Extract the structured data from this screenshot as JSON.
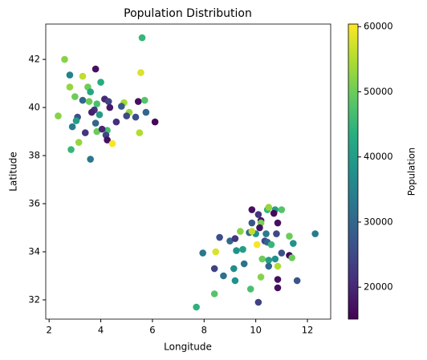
{
  "chart_data": {
    "type": "scatter",
    "title": "Population Distribution",
    "x_label": "Longitude",
    "y_label": "Latitude",
    "colorbar_label": "Population",
    "colormap": "viridis",
    "xlim": [
      1.87,
      12.9
    ],
    "ylim": [
      31.2,
      43.47
    ],
    "xticks": [
      2,
      4,
      6,
      8,
      10,
      12
    ],
    "yticks": [
      32,
      34,
      36,
      38,
      40,
      42
    ],
    "clim": [
      15100,
      60400
    ],
    "cticks": [
      20000,
      30000,
      40000,
      50000,
      60000
    ],
    "x": [
      5.6,
      2.6,
      3.8,
      2.8,
      3.3,
      5.55,
      4.0,
      2.8,
      3.5,
      3.6,
      3.0,
      3.3,
      3.55,
      3.85,
      4.15,
      4.3,
      4.35,
      4.9,
      4.8,
      5.45,
      5.7,
      3.75,
      3.95,
      3.65,
      2.35,
      3.1,
      3.05,
      3.8,
      5.1,
      5.0,
      5.35,
      5.75,
      4.6,
      6.1,
      2.9,
      3.4,
      3.85,
      4.25,
      4.05,
      4.2,
      4.25,
      5.5,
      4.45,
      3.15,
      2.85,
      3.6,
      9.85,
      10.1,
      10.45,
      10.5,
      10.75,
      11.0,
      10.7,
      10.2,
      9.85,
      10.2,
      10.15,
      10.85,
      9.75,
      10.0,
      10.05,
      9.85,
      9.4,
      10.4,
      10.8,
      11.3,
      12.3,
      9.0,
      9.2,
      10.35,
      10.45,
      10.6,
      8.6,
      11.45,
      9.25,
      9.5,
      8.45,
      7.95,
      11.0,
      11.3,
      11.4,
      10.25,
      10.5,
      10.75,
      10.85,
      10.5,
      9.55,
      9.15,
      8.4,
      8.75,
      10.2,
      9.2,
      10.85,
      11.6,
      10.85,
      9.8,
      8.4,
      10.1,
      7.7
    ],
    "y": [
      42.9,
      42.0,
      41.6,
      41.35,
      41.3,
      41.45,
      41.05,
      40.85,
      40.85,
      40.65,
      40.45,
      40.3,
      40.25,
      40.15,
      40.35,
      40.25,
      40.0,
      40.2,
      40.05,
      40.25,
      40.3,
      39.9,
      39.7,
      39.8,
      39.65,
      39.6,
      39.45,
      39.35,
      39.8,
      39.65,
      39.6,
      39.8,
      39.4,
      39.4,
      39.2,
      38.95,
      39.0,
      39.05,
      39.1,
      38.85,
      38.65,
      38.95,
      38.5,
      38.55,
      38.25,
      37.85,
      35.75,
      35.55,
      35.75,
      35.85,
      35.75,
      35.75,
      35.6,
      35.3,
      35.2,
      35.2,
      35.0,
      35.2,
      34.8,
      34.75,
      34.3,
      34.85,
      34.85,
      34.75,
      34.75,
      34.65,
      34.75,
      34.45,
      34.55,
      34.45,
      34.4,
      34.3,
      34.6,
      34.35,
      34.05,
      34.1,
      34.0,
      33.95,
      33.95,
      33.85,
      33.75,
      33.7,
      33.65,
      33.7,
      33.4,
      33.4,
      33.5,
      33.3,
      33.3,
      33.0,
      32.95,
      32.8,
      32.85,
      32.8,
      32.5,
      32.45,
      32.25,
      31.9,
      31.7
    ],
    "c": [
      45000,
      52000,
      17000,
      35000,
      56000,
      58000,
      43000,
      53000,
      50000,
      42000,
      50000,
      30000,
      50000,
      47000,
      20000,
      24000,
      18000,
      54000,
      28000,
      17000,
      48000,
      22000,
      40000,
      19000,
      52000,
      26000,
      40000,
      30000,
      53000,
      25000,
      26000,
      30000,
      21000,
      16000,
      34000,
      22000,
      50000,
      47000,
      20000,
      24000,
      17000,
      55000,
      60000,
      53000,
      45000,
      33000,
      17000,
      22000,
      45000,
      53000,
      40000,
      48000,
      16000,
      18000,
      27000,
      51000,
      17000,
      17000,
      30000,
      38000,
      60000,
      56000,
      52000,
      34000,
      25000,
      50000,
      34000,
      30000,
      22000,
      25000,
      30000,
      45000,
      26000,
      38000,
      38000,
      40000,
      58000,
      33000,
      26000,
      16000,
      50000,
      50000,
      40000,
      38000,
      55000,
      30000,
      32000,
      37000,
      24000,
      32000,
      52000,
      38000,
      17000,
      27000,
      17000,
      47000,
      48000,
      24000,
      44000
    ]
  }
}
